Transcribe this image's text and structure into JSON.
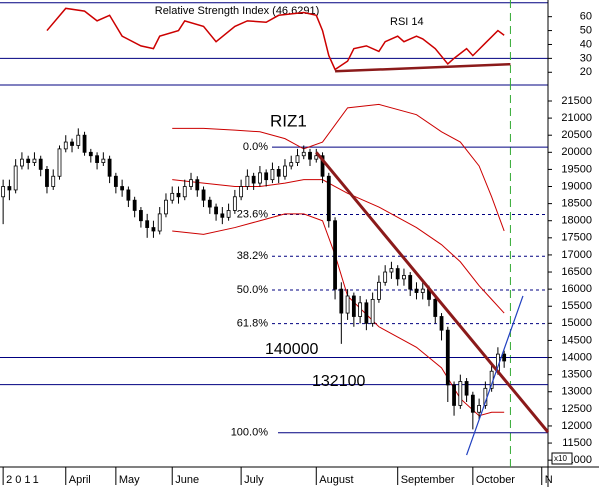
{
  "chart_data": [
    {
      "type": "line",
      "title": "Relative Strength Index (46.6291)",
      "series_label": "RSI 14",
      "color": "#cc0000",
      "ylim": [
        13,
        72
      ],
      "yticks": [
        20,
        30,
        40,
        50,
        60
      ],
      "xlim": [
        -0.5,
        87
      ],
      "levels": [
        70,
        30
      ],
      "level_color": "#000080",
      "x": [
        7,
        10,
        13,
        15,
        17,
        19,
        22,
        24,
        25,
        28,
        29,
        32,
        34,
        37,
        39,
        42,
        44,
        48,
        50,
        51,
        52,
        53,
        55,
        56,
        58,
        60,
        61,
        63,
        64,
        66,
        67,
        69,
        71,
        72,
        74,
        75,
        77,
        79,
        80
      ],
      "values": [
        50,
        66,
        64,
        57,
        61,
        46,
        39,
        37,
        46,
        50,
        57,
        53,
        42,
        53,
        57,
        56,
        61,
        63,
        61,
        50,
        32,
        22,
        28,
        37,
        39,
        35,
        42,
        46,
        42,
        46,
        44,
        37,
        26,
        30,
        37,
        32,
        41,
        50,
        46.6291
      ],
      "trendline": {
        "color": "#8b1a1a",
        "x": [
          53,
          81
        ],
        "values": [
          20.7,
          25.8
        ]
      },
      "marker_x": 81,
      "marker_color": "#33aa33"
    },
    {
      "type": "candlestick",
      "title": "RIZ1",
      "color": "#000000",
      "xlim": [
        -0.5,
        87
      ],
      "ylim": [
        10800,
        21880
      ],
      "yticks": [
        11000,
        11500,
        12000,
        12500,
        13000,
        13500,
        14000,
        14500,
        15000,
        15500,
        16000,
        16500,
        17000,
        17500,
        18000,
        18500,
        19000,
        19500,
        20000,
        20500,
        21000,
        21500
      ],
      "xticks": [
        {
          "value": 0,
          "label": "2011"
        },
        {
          "value": 10,
          "label": "April"
        },
        {
          "value": 18,
          "label": "May"
        },
        {
          "value": 27,
          "label": "June"
        },
        {
          "value": 38,
          "label": "July"
        },
        {
          "value": 50,
          "label": "August"
        },
        {
          "value": 63,
          "label": "September"
        },
        {
          "value": 75,
          "label": "October"
        },
        {
          "value": 86,
          "label": "N"
        }
      ],
      "axis_note": "x10",
      "open": [
        18700,
        19000,
        18900,
        19600,
        19800,
        19700,
        19800,
        19500,
        19000,
        19300,
        20100,
        20300,
        20200,
        20500,
        20000,
        19900,
        19700,
        19800,
        19300,
        19000,
        18900,
        18600,
        18300,
        18000,
        17800,
        17700,
        18200,
        18600,
        18800,
        18700,
        19000,
        19200,
        18900,
        18600,
        18400,
        18200,
        18100,
        18300,
        18700,
        19000,
        19300,
        19100,
        19400,
        19200,
        19500,
        19300,
        19600,
        19700,
        19900,
        20000,
        19800,
        19900,
        19300,
        18000,
        16000,
        15300,
        15800,
        15200,
        15600,
        15000,
        15700,
        16200,
        16500,
        16600,
        16300,
        16400,
        16000,
        15900,
        16000,
        15700,
        15200,
        14800,
        13200,
        12600,
        13300,
        12900,
        12400,
        12600,
        13100,
        13600,
        14100
      ],
      "high": [
        19200,
        19200,
        19800,
        20000,
        19900,
        20000,
        19900,
        19600,
        19500,
        20200,
        20500,
        20400,
        20700,
        20600,
        20100,
        20000,
        20000,
        19900,
        19400,
        19200,
        19000,
        18700,
        18400,
        18200,
        18000,
        18400,
        18800,
        19000,
        19000,
        19200,
        19400,
        19300,
        19000,
        18700,
        18500,
        18400,
        18500,
        18900,
        19200,
        19500,
        19400,
        19600,
        19500,
        19700,
        19600,
        19800,
        19900,
        20100,
        20200,
        20100,
        20100,
        20000,
        19400,
        18100,
        16200,
        16000,
        15900,
        15800,
        15700,
        15900,
        16400,
        16700,
        16800,
        16700,
        16600,
        16500,
        16200,
        16200,
        16100,
        15800,
        15300,
        14900,
        13300,
        13500,
        13400,
        13000,
        12800,
        13300,
        13800,
        14300,
        14200
      ],
      "low": [
        17900,
        18600,
        18800,
        19500,
        19500,
        19600,
        19300,
        18800,
        18900,
        19200,
        20000,
        20000,
        20100,
        19900,
        19700,
        19500,
        19600,
        19100,
        18800,
        18700,
        18400,
        18100,
        17800,
        17500,
        17500,
        17600,
        18100,
        18500,
        18500,
        18600,
        18900,
        18700,
        18400,
        18200,
        18000,
        17900,
        18000,
        18200,
        18600,
        18900,
        18900,
        19000,
        19000,
        19100,
        19100,
        19200,
        19500,
        19600,
        19800,
        19600,
        19700,
        19100,
        17800,
        15700,
        14400,
        15100,
        14900,
        15000,
        14800,
        14900,
        15600,
        16100,
        16300,
        16100,
        16100,
        15800,
        15700,
        15700,
        15500,
        15000,
        14500,
        12700,
        12300,
        12500,
        12700,
        11900,
        12200,
        12500,
        13000,
        13500,
        13700
      ],
      "close": [
        19000,
        18900,
        19600,
        19800,
        19700,
        19800,
        19500,
        19000,
        19300,
        20100,
        20300,
        20200,
        20500,
        20000,
        19900,
        19700,
        19800,
        19300,
        19000,
        18900,
        18600,
        18300,
        18000,
        17800,
        17700,
        18200,
        18600,
        18800,
        18700,
        19000,
        19200,
        18900,
        18600,
        18400,
        18200,
        18100,
        18300,
        18700,
        19000,
        19300,
        19100,
        19400,
        19200,
        19500,
        19300,
        19600,
        19700,
        19900,
        20000,
        19800,
        19900,
        19300,
        18000,
        16000,
        15300,
        15800,
        15200,
        15600,
        15000,
        15700,
        16200,
        16500,
        16600,
        16300,
        16400,
        16000,
        15900,
        16000,
        15700,
        15200,
        14800,
        13200,
        12600,
        13300,
        12900,
        12400,
        12600,
        13100,
        13600,
        14100,
        13900
      ],
      "bands": [
        {
          "color": "#cc0000",
          "x": [
            27,
            32,
            37,
            41,
            45,
            48,
            51,
            53,
            55,
            60,
            66,
            70,
            73,
            76,
            78,
            80
          ],
          "values": [
            20700,
            20700,
            20650,
            20600,
            20400,
            20100,
            20300,
            20800,
            21300,
            21400,
            21100,
            20600,
            20300,
            19600,
            18700,
            17700
          ]
        },
        {
          "color": "#cc0000",
          "x": [
            27,
            32,
            37,
            41,
            45,
            48,
            51,
            53,
            55,
            60,
            66,
            70,
            73,
            76,
            78,
            80
          ],
          "values": [
            19200,
            19100,
            19000,
            19000,
            19100,
            19200,
            19200,
            19000,
            18800,
            18400,
            17800,
            17300,
            16800,
            16100,
            15700,
            15300
          ]
        },
        {
          "color": "#cc0000",
          "x": [
            27,
            32,
            37,
            41,
            45,
            48,
            51,
            53,
            55,
            60,
            66,
            70,
            73,
            76,
            78,
            80
          ],
          "values": [
            17700,
            17600,
            17800,
            18000,
            18200,
            18200,
            18000,
            17000,
            15800,
            14900,
            14300,
            13700,
            12800,
            12300,
            12400,
            12400
          ]
        }
      ],
      "fib_color": "#000080",
      "fib_levels": [
        {
          "label": "0.0%",
          "value": 20150
        },
        {
          "label": "23.6%",
          "value": 18180
        },
        {
          "label": "38.2%",
          "value": 16960
        },
        {
          "label": "50.0%",
          "value": 15975
        },
        {
          "label": "61.8%",
          "value": 14990
        },
        {
          "label": "100.0%",
          "value": 11800
        }
      ],
      "hlines": [
        {
          "label": "140000",
          "value": 14000
        },
        {
          "label": "132100",
          "value": 13210
        }
      ],
      "trendlines": [
        {
          "color": "#8b1a1a",
          "x": [
            50,
            87
          ],
          "values": [
            20000,
            11820
          ]
        },
        {
          "color": "#2040c0",
          "x": [
            74,
            83
          ],
          "values": [
            11150,
            15800
          ]
        }
      ],
      "marker_x": 81,
      "marker_color": "#33aa33"
    }
  ]
}
